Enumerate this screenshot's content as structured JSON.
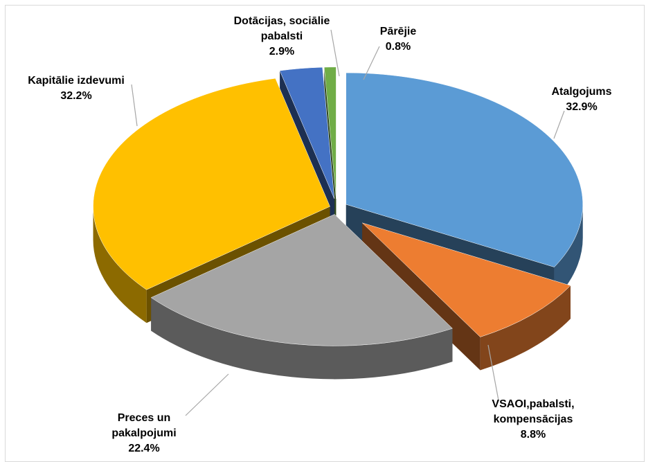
{
  "chart_data": {
    "type": "pie",
    "title": "",
    "slices": [
      {
        "name": "Atalgojums",
        "lines": [
          "Atalgojums"
        ],
        "value": 32.9,
        "label": "32.9%",
        "color": "#5b9bd5"
      },
      {
        "name": "VSAOI,pabalsti, kompensācijas",
        "lines": [
          "VSAOI,pabalsti,",
          "kompensācijas"
        ],
        "value": 8.8,
        "label": "8.8%",
        "color": "#ed7d31"
      },
      {
        "name": "Preces un pakalpojumi",
        "lines": [
          "Preces un",
          "pakalpojumi"
        ],
        "value": 22.4,
        "label": "22.4%",
        "color": "#a5a5a5"
      },
      {
        "name": "Kapitālie izdevumi",
        "lines": [
          "Kapitālie izdevumi"
        ],
        "value": 32.2,
        "label": "32.2%",
        "color": "#ffc000"
      },
      {
        "name": "Dotācijas, sociālie pabalsti",
        "lines": [
          "Dotācijas, sociālie",
          "pabalsti"
        ],
        "value": 2.9,
        "label": "2.9%",
        "color": "#4472c4"
      },
      {
        "name": "Pārējie",
        "lines": [
          "Pārējie"
        ],
        "value": 0.8,
        "label": "0.8%",
        "color": "#70ad47"
      }
    ],
    "legend": "none",
    "style": "3d-exploded"
  }
}
